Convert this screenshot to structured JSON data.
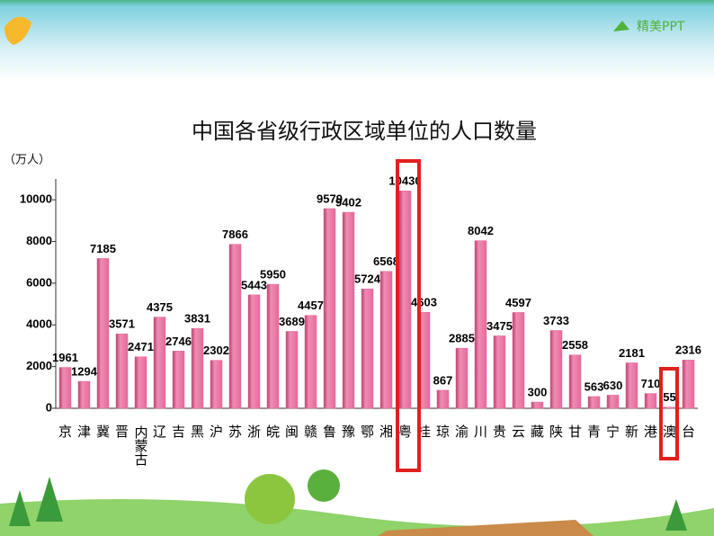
{
  "logo": "精美PPT",
  "chart_data": {
    "type": "bar",
    "title": "中国各省级行政区域单位的人口数量",
    "y_label": "（万人）",
    "categories": [
      "京",
      "津",
      "冀",
      "晋",
      "内蒙古",
      "辽",
      "吉",
      "黑",
      "沪",
      "苏",
      "浙",
      "皖",
      "闽",
      "赣",
      "鲁",
      "豫",
      "鄂",
      "湘",
      "粤",
      "桂",
      "琼",
      "渝",
      "川",
      "贵",
      "云",
      "藏",
      "陕",
      "甘",
      "青",
      "宁",
      "新",
      "港",
      "澳",
      "台"
    ],
    "values": [
      1961,
      1294,
      7185,
      3571,
      2471,
      4375,
      2746,
      3831,
      2302,
      7866,
      5443,
      5950,
      3689,
      4457,
      9579,
      9402,
      5724,
      6568,
      10430,
      4603,
      867,
      2885,
      8042,
      3475,
      4597,
      300,
      3733,
      2558,
      563,
      630,
      2181,
      710,
      55,
      2316
    ],
    "color": "#e5699a",
    "ylim": [
      0,
      11000
    ],
    "yticks": [
      0,
      2000,
      4000,
      6000,
      8000,
      10000
    ]
  }
}
